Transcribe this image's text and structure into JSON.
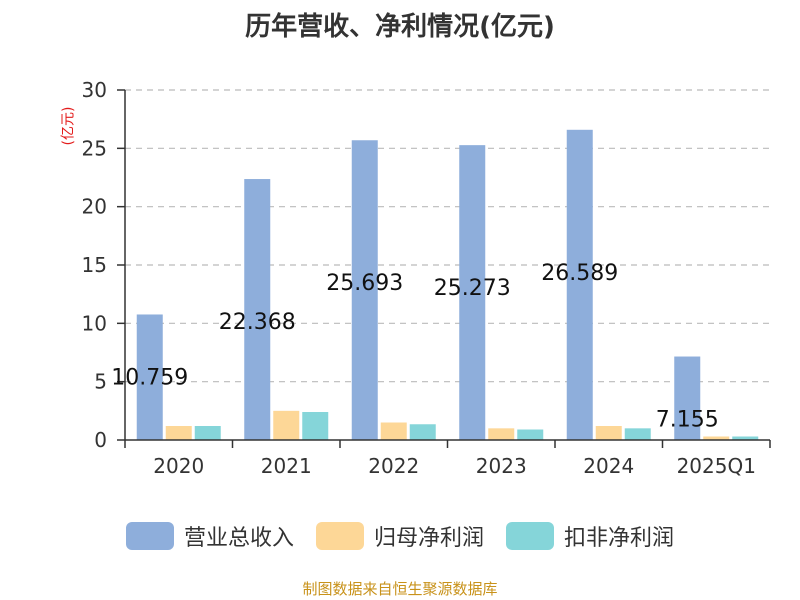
{
  "chart_data": {
    "type": "bar",
    "title": "历年营收、净利情况(亿元)",
    "ylabel": "(亿元)",
    "xlabel": "",
    "categories": [
      "2020",
      "2021",
      "2022",
      "2023",
      "2024",
      "2025Q1"
    ],
    "ylim": [
      0,
      30
    ],
    "yticks": [
      0,
      5,
      10,
      15,
      20,
      25,
      30
    ],
    "grid": true,
    "legend_position": "bottom",
    "series": [
      {
        "name": "营业总收入",
        "color": "#8eaedb",
        "values": [
          10.759,
          22.368,
          25.693,
          25.273,
          26.589,
          7.155
        ],
        "labels": [
          "10.759",
          "22.368",
          "25.693",
          "25.273",
          "26.589",
          "7.155"
        ]
      },
      {
        "name": "归母净利润",
        "color": "#fdd797",
        "values": [
          1.2,
          2.5,
          1.5,
          1.0,
          1.2,
          0.3
        ]
      },
      {
        "name": "扣非净利润",
        "color": "#85d5d9",
        "values": [
          1.2,
          2.4,
          1.35,
          0.9,
          1.0,
          0.3
        ]
      }
    ]
  },
  "source": "制图数据来自恒生聚源数据库"
}
